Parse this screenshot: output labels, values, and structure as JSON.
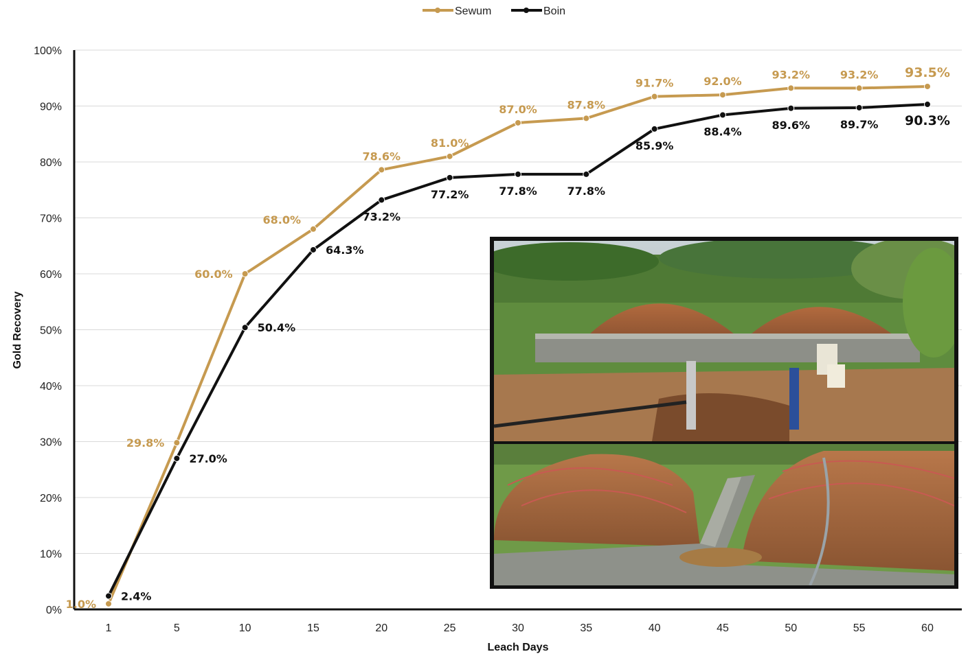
{
  "legend": {
    "placement": "top-center"
  },
  "colors": {
    "sewum": "#C69A50",
    "boin": "#111111",
    "grid": "#d9d9d9",
    "axis": "#111111"
  },
  "chart_data": {
    "type": "line",
    "title": "",
    "xlabel": "Leach Days",
    "ylabel": "Gold Recovery",
    "categories": [
      "1",
      "5",
      "10",
      "15",
      "20",
      "25",
      "30",
      "35",
      "40",
      "45",
      "50",
      "55",
      "60"
    ],
    "ylim": [
      0,
      100
    ],
    "yticks": [
      "0%",
      "10%",
      "20%",
      "30%",
      "40%",
      "50%",
      "60%",
      "70%",
      "80%",
      "90%",
      "100%"
    ],
    "grid": true,
    "series": [
      {
        "name": "Sewum",
        "color": "#C69A50",
        "values": [
          1.0,
          29.8,
          60.0,
          68.0,
          78.6,
          81.0,
          87.0,
          87.8,
          91.7,
          92.0,
          93.2,
          93.2,
          93.5
        ],
        "labels": [
          "1.0%",
          "29.8%",
          "60.0%",
          "68.0%",
          "78.6%",
          "81.0%",
          "87.0%",
          "87.8%",
          "91.7%",
          "92.0%",
          "93.2%",
          "93.2%",
          "93.5%"
        ]
      },
      {
        "name": "Boin",
        "color": "#111111",
        "values": [
          2.4,
          27.0,
          50.4,
          64.3,
          73.2,
          77.2,
          77.8,
          77.8,
          85.9,
          88.4,
          89.6,
          89.7,
          90.3
        ],
        "labels": [
          "2.4%",
          "27.0%",
          "50.4%",
          "64.3%",
          "73.2%",
          "77.2%",
          "77.8%",
          "77.8%",
          "85.9%",
          "88.4%",
          "89.6%",
          "89.7%",
          "90.3%"
        ]
      }
    ]
  }
}
